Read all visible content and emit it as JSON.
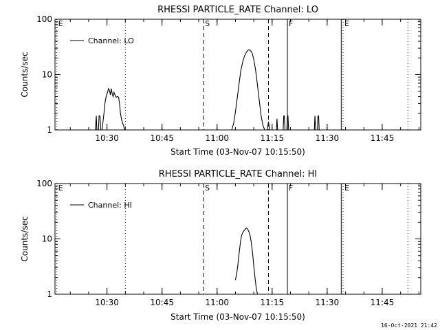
{
  "footer_timestamp": "16-Oct-2021 21:42",
  "chart_data": [
    {
      "type": "line",
      "title": "RHESSI PARTICLE_RATE Channel: LO",
      "xlabel": "Start Time (03-Nov-07 10:15:50)",
      "ylabel": "Counts/sec",
      "legend": "Channel: LO",
      "legend_position": "top-left",
      "y_scale": "log",
      "ylim": [
        1,
        100
      ],
      "y_ticks": [
        {
          "v": 1,
          "label": "1"
        },
        {
          "v": 10,
          "label": "10"
        },
        {
          "v": 100,
          "label": "100"
        }
      ],
      "xlim": [
        "10:15:50",
        "11:55:30"
      ],
      "x_ticks": [
        "10:30",
        "10:45",
        "11:00",
        "11:15",
        "11:30",
        "11:45"
      ],
      "markers": [
        {
          "t": "10:16:20",
          "style": "dotted",
          "label": "E"
        },
        {
          "t": "10:35:00",
          "style": "dotted",
          "label": ""
        },
        {
          "t": "10:56:20",
          "style": "dashed",
          "label": "S"
        },
        {
          "t": "11:14:00",
          "style": "dashed",
          "label": ""
        },
        {
          "t": "11:19:10",
          "style": "solid",
          "label": "F"
        },
        {
          "t": "11:33:50",
          "style": "solid",
          "label": ""
        },
        {
          "t": "11:34:20",
          "style": "dotted",
          "label": "E"
        },
        {
          "t": "11:52:00",
          "style": "dotted",
          "label": ""
        }
      ],
      "series": [
        {
          "name": "Channel: LO",
          "segments": [
            [
              [
                "10:26:50",
                1
              ],
              [
                "10:27:05",
                1.8
              ],
              [
                "10:27:15",
                1
              ]
            ],
            [
              [
                "10:27:40",
                1
              ],
              [
                "10:27:50",
                1.8
              ],
              [
                "10:28:05",
                1.8
              ],
              [
                "10:28:20",
                1
              ]
            ],
            [
              [
                "10:28:40",
                1
              ],
              [
                "10:29:00",
                1.6
              ],
              [
                "10:29:15",
                2.2
              ],
              [
                "10:29:30",
                3.2
              ],
              [
                "10:29:50",
                4.2
              ],
              [
                "10:30:10",
                4.8
              ],
              [
                "10:30:25",
                5.6
              ],
              [
                "10:30:40",
                5.2
              ],
              [
                "10:30:55",
                4.3
              ],
              [
                "10:31:10",
                5.6
              ],
              [
                "10:31:25",
                4.5
              ],
              [
                "10:31:40",
                4.0
              ],
              [
                "10:31:55",
                4.8
              ],
              [
                "10:32:10",
                4.3
              ],
              [
                "10:32:30",
                3.9
              ],
              [
                "10:32:50",
                4.0
              ],
              [
                "10:33:10",
                3.9
              ],
              [
                "10:33:25",
                3.0
              ],
              [
                "10:33:40",
                2.0
              ],
              [
                "10:34:00",
                1.5
              ],
              [
                "10:34:20",
                1.3
              ],
              [
                "10:34:35",
                1.15
              ],
              [
                "10:34:50",
                1
              ]
            ],
            [
              [
                "11:04:00",
                1
              ],
              [
                "11:04:30",
                1.3
              ],
              [
                "11:05:00",
                2.1
              ],
              [
                "11:05:30",
                3.8
              ],
              [
                "11:06:00",
                7
              ],
              [
                "11:06:30",
                12
              ],
              [
                "11:07:00",
                17
              ],
              [
                "11:07:30",
                22
              ],
              [
                "11:08:00",
                25.5
              ],
              [
                "11:08:30",
                28
              ],
              [
                "11:09:00",
                27.5
              ],
              [
                "11:09:30",
                25
              ],
              [
                "11:10:00",
                19
              ],
              [
                "11:10:30",
                12
              ],
              [
                "11:11:00",
                6.5
              ],
              [
                "11:11:30",
                3.4
              ],
              [
                "11:12:00",
                1.8
              ],
              [
                "11:12:30",
                1.2
              ],
              [
                "11:13:00",
                1
              ]
            ],
            [
              [
                "11:13:40",
                1
              ],
              [
                "11:14:00",
                1.4
              ],
              [
                "11:14:20",
                1
              ]
            ],
            [
              [
                "11:16:10",
                1
              ],
              [
                "11:16:20",
                1.6
              ],
              [
                "11:16:30",
                1
              ]
            ],
            [
              [
                "11:18:00",
                1
              ],
              [
                "11:18:10",
                1.8
              ],
              [
                "11:18:20",
                1.8
              ],
              [
                "11:18:30",
                1
              ]
            ],
            [
              [
                "11:19:00",
                1
              ],
              [
                "11:19:10",
                1.8
              ],
              [
                "11:19:20",
                1.8
              ],
              [
                "11:19:30",
                1
              ]
            ],
            [
              [
                "11:26:30",
                1
              ],
              [
                "11:26:40",
                1.8
              ],
              [
                "11:26:55",
                1
              ]
            ],
            [
              [
                "11:27:20",
                1
              ],
              [
                "11:27:30",
                1.8
              ],
              [
                "11:27:40",
                1.8
              ],
              [
                "11:27:50",
                1
              ]
            ]
          ]
        }
      ]
    },
    {
      "type": "line",
      "title": "RHESSI PARTICLE_RATE Channel: HI",
      "xlabel": "Start Time (03-Nov-07 10:15:50)",
      "ylabel": "Counts/sec",
      "legend": "Channel: HI",
      "legend_position": "top-left",
      "y_scale": "log",
      "ylim": [
        1,
        100
      ],
      "y_ticks": [
        {
          "v": 1,
          "label": "1"
        },
        {
          "v": 10,
          "label": "10"
        },
        {
          "v": 100,
          "label": "100"
        }
      ],
      "xlim": [
        "10:15:50",
        "11:55:30"
      ],
      "x_ticks": [
        "10:30",
        "10:45",
        "11:00",
        "11:15",
        "11:30",
        "11:45"
      ],
      "markers": [
        {
          "t": "10:16:20",
          "style": "dotted",
          "label": "E"
        },
        {
          "t": "10:35:00",
          "style": "dotted",
          "label": ""
        },
        {
          "t": "10:56:20",
          "style": "dashed",
          "label": "S"
        },
        {
          "t": "11:14:00",
          "style": "dashed",
          "label": ""
        },
        {
          "t": "11:19:10",
          "style": "solid",
          "label": "F"
        },
        {
          "t": "11:33:50",
          "style": "solid",
          "label": ""
        },
        {
          "t": "11:34:20",
          "style": "dotted",
          "label": "E"
        },
        {
          "t": "11:52:00",
          "style": "dotted",
          "label": ""
        }
      ],
      "series": [
        {
          "name": "Channel: HI",
          "segments": [
            [
              [
                "11:05:00",
                1.8
              ],
              [
                "11:05:20",
                2.3
              ],
              [
                "11:05:40",
                3.4
              ],
              [
                "11:06:00",
                5.5
              ],
              [
                "11:06:20",
                8.5
              ],
              [
                "11:06:40",
                11.5
              ],
              [
                "11:07:00",
                13
              ],
              [
                "11:07:20",
                14
              ],
              [
                "11:07:40",
                15
              ],
              [
                "11:08:00",
                15.8
              ],
              [
                "11:08:20",
                15
              ],
              [
                "11:08:40",
                13.5
              ],
              [
                "11:09:00",
                11.5
              ],
              [
                "11:09:20",
                8.5
              ],
              [
                "11:09:40",
                5.5
              ],
              [
                "11:10:00",
                3.3
              ],
              [
                "11:10:20",
                2
              ],
              [
                "11:10:40",
                1.3
              ],
              [
                "11:11:00",
                1
              ]
            ]
          ]
        }
      ]
    }
  ]
}
